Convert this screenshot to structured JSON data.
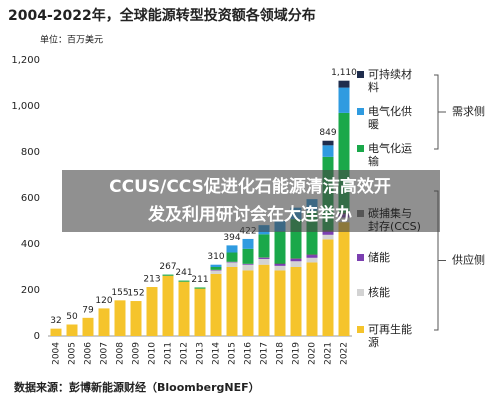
{
  "chart_data": {
    "type": "stacked_bar",
    "title": "2004-2022年，全球能源转型投资额各领域分布",
    "unit": "单位：百万美元",
    "source": "数据来源：彭博新能源财经（BloombergNEF）",
    "categories": [
      "2004",
      "2005",
      "2006",
      "2007",
      "2008",
      "2009",
      "2010",
      "2011",
      "2012",
      "2013",
      "2014",
      "2015",
      "2016",
      "2017",
      "2018",
      "2019",
      "2020",
      "2021",
      "2022"
    ],
    "series": [
      {
        "name": "可再生能源",
        "color": "#f5c42c",
        "values": [
          32,
          50,
          79,
          120,
          155,
          152,
          213,
          262,
          236,
          206,
          270,
          300,
          285,
          310,
          285,
          300,
          320,
          420,
          495
        ]
      },
      {
        "name": "核能",
        "color": "#d3d3d3",
        "values": [
          0,
          0,
          0,
          0,
          0,
          0,
          0,
          0,
          0,
          0,
          15,
          20,
          25,
          25,
          20,
          25,
          20,
          20,
          20
        ]
      },
      {
        "name": "储能",
        "color": "#7b3fb0",
        "values": [
          0,
          0,
          0,
          0,
          0,
          0,
          0,
          0,
          0,
          0,
          2,
          2,
          3,
          5,
          8,
          10,
          12,
          15,
          15
        ]
      },
      {
        "name": "碳捕集与封存(CCS)",
        "color": "#555555",
        "values": [
          0,
          0,
          0,
          0,
          0,
          0,
          0,
          0,
          0,
          0,
          1,
          1,
          1,
          2,
          2,
          3,
          3,
          5,
          6
        ]
      },
      {
        "name": "电气化运输",
        "color": "#1aa84a",
        "values": [
          0,
          0,
          0,
          0,
          0,
          0,
          0,
          5,
          5,
          5,
          12,
          40,
          65,
          100,
          140,
          170,
          190,
          319,
          434
        ]
      },
      {
        "name": "电气化供暖",
        "color": "#2f9be0",
        "values": [
          0,
          0,
          0,
          0,
          0,
          0,
          0,
          0,
          0,
          0,
          10,
          31,
          43,
          40,
          45,
          50,
          50,
          50,
          110
        ]
      },
      {
        "name": "可持续材料",
        "color": "#1f2d4d",
        "values": [
          0,
          0,
          0,
          0,
          0,
          0,
          0,
          0,
          0,
          0,
          0,
          0,
          0,
          0,
          0,
          0,
          0,
          20,
          30
        ]
      }
    ],
    "totals": {
      "values": [
        32,
        50,
        79,
        120,
        155,
        152,
        213,
        267,
        241,
        211,
        310,
        394,
        422,
        null,
        null,
        null,
        null,
        849,
        1110
      ],
      "value_labels": [
        "32",
        "50",
        "79",
        "120",
        "155",
        "152",
        "213",
        "267",
        "241",
        "211",
        "310",
        "394",
        "422",
        null,
        null,
        null,
        null,
        "849",
        "1,110"
      ]
    },
    "groups": [
      {
        "label": "需求侧",
        "from": 4,
        "to": 6
      },
      {
        "label": "供应侧",
        "from": 0,
        "to": 3
      }
    ],
    "ylim": [
      0,
      1200
    ],
    "yticks": [
      0,
      200,
      400,
      600,
      800,
      {
        "value": 1000,
        "label": "1,000"
      },
      {
        "value": 1200,
        "label": "1,200"
      }
    ],
    "grid": false
  },
  "overlay": {
    "lines": [
      "CCUS/CCS促进化石能源清洁高效开",
      "发及利用研讨会在大连举办"
    ]
  }
}
